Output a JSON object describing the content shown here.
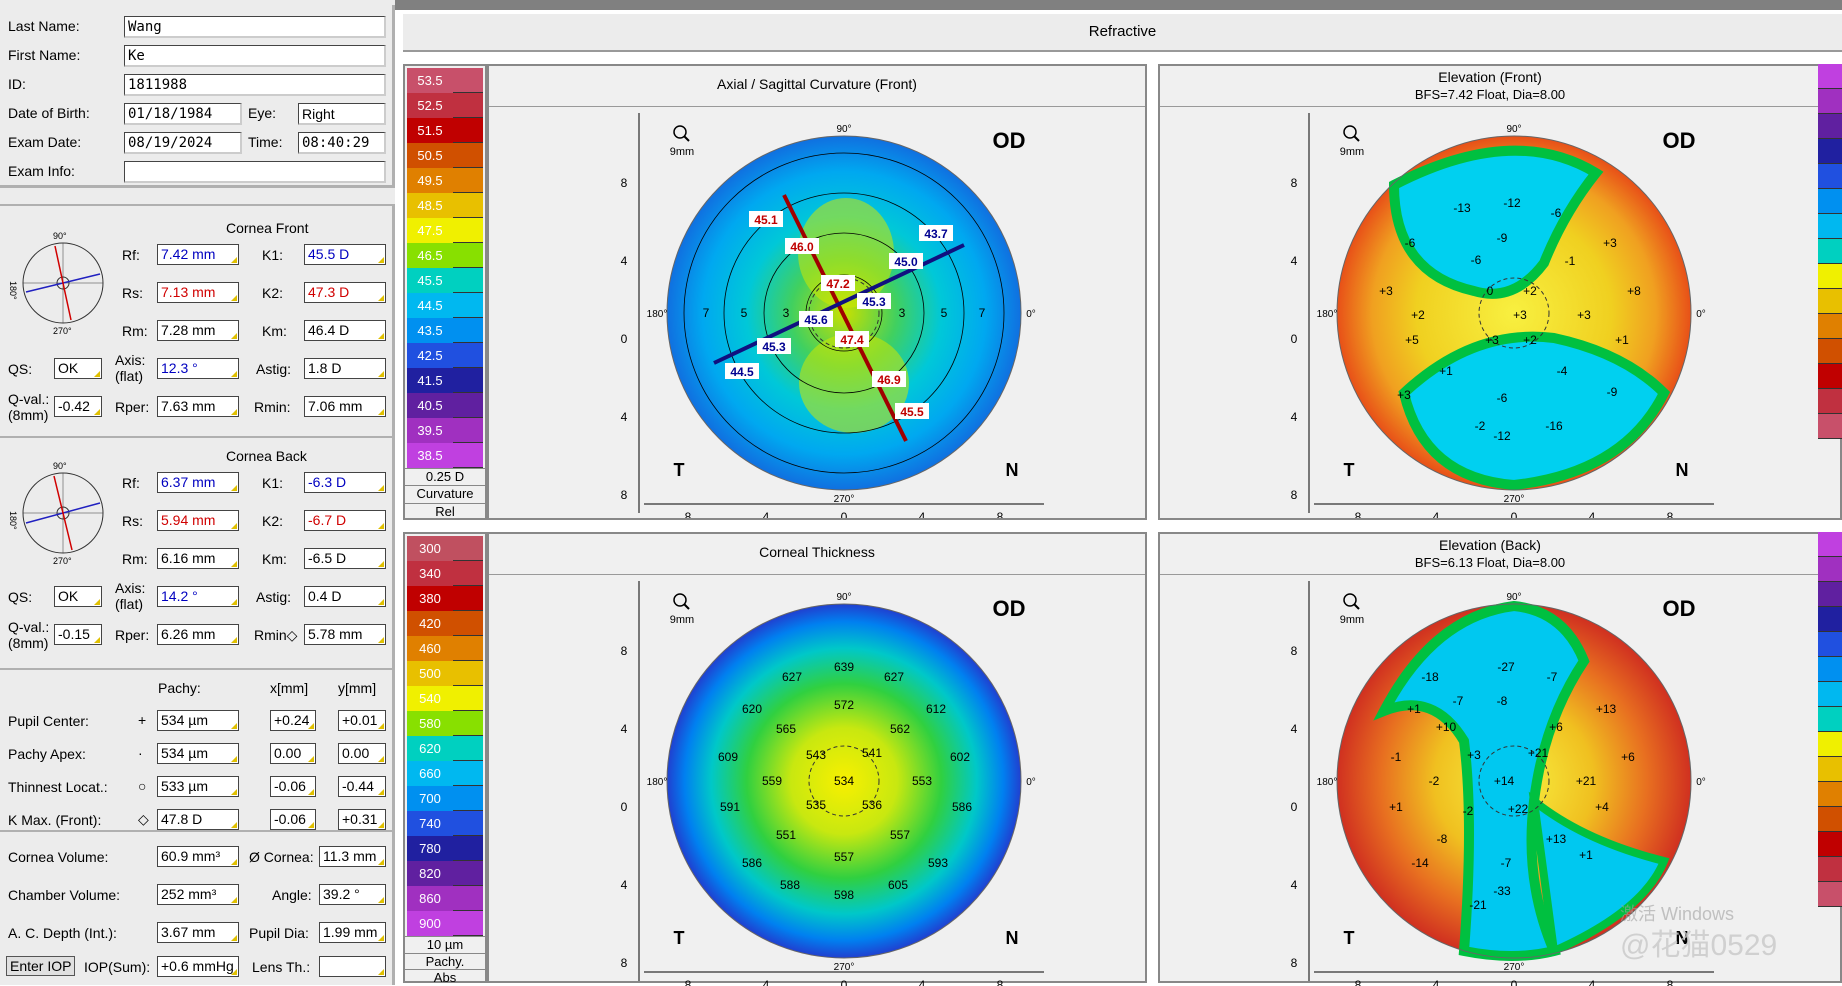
{
  "patient": {
    "last_name_label": "Last Name:",
    "last_name": "Wang",
    "first_name_label": "First Name:",
    "first_name": "Ke",
    "id_label": "ID:",
    "id": "1811988",
    "dob_label": "Date of Birth:",
    "dob": "01/18/1984",
    "eye_label": "Eye:",
    "eye": "Right",
    "exam_date_label": "Exam Date:",
    "exam_date": "08/19/2024",
    "time_label": "Time:",
    "time": "08:40:29",
    "exam_info_label": "Exam Info:",
    "exam_info": ""
  },
  "cornea_front": {
    "title": "Cornea Front",
    "rf_label": "Rf:",
    "rf": "7.42 mm",
    "k1_label": "K1:",
    "k1": "45.5 D",
    "rs_label": "Rs:",
    "rs": "7.13 mm",
    "k2_label": "K2:",
    "k2": "47.3 D",
    "rm_label": "Rm:",
    "rm": "7.28 mm",
    "km_label": "Km:",
    "km": "46.4 D",
    "qs_label": "QS:",
    "qs": "OK",
    "axis_label": "Axis:",
    "axis_sub": "(flat)",
    "axis": "12.3 °",
    "astig_label": "Astig:",
    "astig": "1.8 D",
    "qval_label": "Q-val.:",
    "qval_sub": "(8mm)",
    "qval": "-0.42",
    "rper_label": "Rper:",
    "rper": "7.63 mm",
    "rmin_label": "Rmin:",
    "rmin": "7.06 mm",
    "dial_labels": {
      "top": "90°",
      "left": "180°",
      "bottom": "270°"
    }
  },
  "cornea_back": {
    "title": "Cornea Back",
    "rf_label": "Rf:",
    "rf": "6.37 mm",
    "k1_label": "K1:",
    "k1": "-6.3 D",
    "rs_label": "Rs:",
    "rs": "5.94 mm",
    "k2_label": "K2:",
    "k2": "-6.7 D",
    "rm_label": "Rm:",
    "rm": "6.16 mm",
    "km_label": "Km:",
    "km": "-6.5 D",
    "qs_label": "QS:",
    "qs": "OK",
    "axis_label": "Axis:",
    "axis_sub": "(flat)",
    "axis": "14.2 °",
    "astig_label": "Astig:",
    "astig": "0.4 D",
    "qval_label": "Q-val.:",
    "qval_sub": "(8mm)",
    "qval": "-0.15",
    "rper_label": "Rper:",
    "rper": "6.26 mm",
    "rmin_label": "Rmin◇",
    "rmin": "5.78 mm",
    "dial_labels": {
      "top": "90°",
      "left": "180°",
      "bottom": "270°"
    }
  },
  "pachy": {
    "hdr_pachy": "Pachy:",
    "hdr_x": "x[mm]",
    "hdr_y": "y[mm]",
    "rows": [
      {
        "label": "Pupil Center:",
        "sym": "+",
        "pachy": "534 µm",
        "x": "+0.24",
        "y": "+0.01"
      },
      {
        "label": "Pachy Apex:",
        "sym": "·",
        "pachy": "534 µm",
        "x": "0.00",
        "y": "0.00"
      },
      {
        "label": "Thinnest Locat.:",
        "sym": "○",
        "pachy": "533 µm",
        "x": "-0.06",
        "y": "-0.44"
      },
      {
        "label": "K Max. (Front):",
        "sym": "◇",
        "pachy": "47.8 D",
        "x": "-0.06",
        "y": "+0.31"
      }
    ]
  },
  "volumes": {
    "cornea_vol_label": "Cornea Volume:",
    "cornea_vol": "60.9 mm³",
    "dia_label": "Ø Cornea:",
    "dia": "11.3 mm",
    "chamber_vol_label": "Chamber Volume:",
    "chamber_vol": "252 mm³",
    "angle_label": "Angle:",
    "angle": "39.2 °",
    "acd_label": "A. C. Depth (Int.):",
    "acd": "3.67 mm",
    "pupil_label": "Pupil Dia:",
    "pupil": "1.99 mm",
    "enter_iop": "Enter IOP",
    "iop_label": "IOP(Sum):",
    "iop": "+0.6 mmHg",
    "lens_label": "Lens Th.:",
    "lens": ""
  },
  "header": {
    "title": "Refractive"
  },
  "scale_curv": {
    "values": [
      "53.5",
      "52.5",
      "51.5",
      "50.5",
      "49.5",
      "48.5",
      "47.5",
      "46.5",
      "45.5",
      "44.5",
      "43.5",
      "42.5",
      "41.5",
      "40.5",
      "39.5",
      "38.5"
    ],
    "colors": [
      "#c8506a",
      "#c03040",
      "#c00000",
      "#d05000",
      "#e08000",
      "#e8c000",
      "#f0f000",
      "#88e000",
      "#00d0c0",
      "#00b8f0",
      "#0090f0",
      "#2050e0",
      "#2020a0",
      "#6020a0",
      "#a030c0",
      "#c040e0"
    ],
    "step": "0.25 D",
    "type": "Curvature",
    "mode": "Rel"
  },
  "scale_pachy": {
    "values": [
      "300",
      "340",
      "380",
      "420",
      "460",
      "500",
      "540",
      "580",
      "620",
      "660",
      "700",
      "740",
      "780",
      "820",
      "860",
      "900"
    ],
    "colors": [
      "#c05060",
      "#c03040",
      "#c00000",
      "#d05000",
      "#e08000",
      "#e8c000",
      "#f0f000",
      "#88e000",
      "#00d0c0",
      "#00b8f0",
      "#0090f0",
      "#2050e0",
      "#2020a0",
      "#6020a0",
      "#a030c0",
      "#c040e0"
    ],
    "step": "10 µm",
    "type": "Pachy.",
    "mode": "Abs"
  },
  "maps": {
    "axial": {
      "title": "Axial / Sagittal Curvature (Front)",
      "subtitle": ""
    },
    "elev_front": {
      "title": "Elevation (Front)",
      "subtitle": "BFS=7.42 Float, Dia=8.00"
    },
    "thickness": {
      "title": "Corneal Thickness",
      "subtitle": ""
    },
    "elev_back": {
      "title": "Elevation (Back)",
      "subtitle": "BFS=6.13 Float, Dia=8.00"
    },
    "od": "OD",
    "t": "T",
    "n": "N",
    "zoom": "9mm",
    "deg_top": "90°",
    "deg_bottom": "270°",
    "deg_left": "180°",
    "deg_right": "0°",
    "y_ticks": [
      "8",
      "4",
      "0",
      "4",
      "8"
    ],
    "x_ticks": [
      "8",
      "4",
      "0",
      "4",
      "8"
    ]
  },
  "axial_labels": [
    {
      "v": "45.1",
      "c": "red"
    },
    {
      "v": "46.0",
      "c": "red"
    },
    {
      "v": "47.2",
      "c": "red"
    },
    {
      "v": "47.4",
      "c": "red"
    },
    {
      "v": "46.9",
      "c": "red"
    },
    {
      "v": "45.5",
      "c": "red"
    },
    {
      "v": "43.7",
      "c": "blue"
    },
    {
      "v": "45.0",
      "c": "blue"
    },
    {
      "v": "45.3",
      "c": "blue"
    },
    {
      "v": "45.6",
      "c": "blue"
    },
    {
      "v": "45.3",
      "c": "blue"
    },
    {
      "v": "44.5",
      "c": "blue"
    }
  ],
  "axial_ring_labels": [
    "7",
    "5",
    "3",
    "3",
    "5",
    "7"
  ],
  "elev_front_values": [
    "-13",
    "-12",
    "-6",
    "-6",
    "-9",
    "-6",
    "+3",
    "-1",
    "+3",
    "0",
    "+2",
    "+8",
    "+2",
    "+3",
    "+3",
    "+5",
    "+3",
    "+2",
    "+1",
    "+1",
    "-4",
    "+3",
    "-6",
    "-9",
    "-2",
    "-12",
    "-16"
  ],
  "thick_values": [
    "639",
    "627",
    "627",
    "620",
    "572",
    "612",
    "565",
    "562",
    "609",
    "543",
    "541",
    "602",
    "559",
    "534",
    "553",
    "591",
    "535",
    "536",
    "586",
    "551",
    "557",
    "586",
    "557",
    "593",
    "588",
    "605",
    "598"
  ],
  "elev_back_values": [
    "-27",
    "-18",
    "-7",
    "-7",
    "-8",
    "+13",
    "+1",
    "+10",
    "+6",
    "-1",
    "+3",
    "+21",
    "+6",
    "-2",
    "+14",
    "+21",
    "+1",
    "-2",
    "+22",
    "+4",
    "-8",
    "+13",
    "-14",
    "-7",
    "+1",
    "-21",
    "-33"
  ],
  "watermark": "激活 Windows",
  "watermark2": "@花猫0529"
}
